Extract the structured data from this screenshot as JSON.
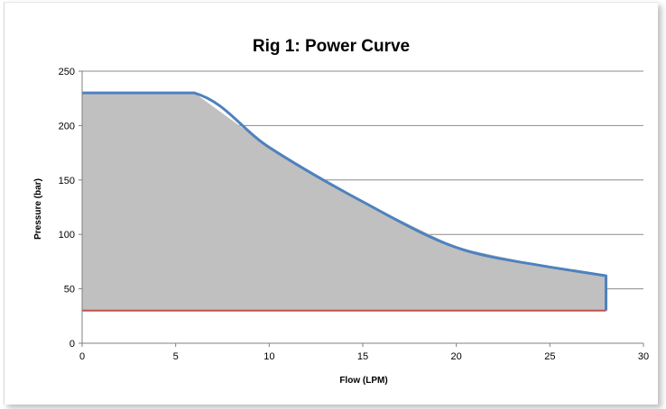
{
  "chart_data": {
    "type": "area",
    "title": "Rig 1: Power Curve",
    "xlabel": "Flow (LPM)",
    "ylabel": "Pressure (bar)",
    "xlim": [
      0,
      30
    ],
    "ylim": [
      0,
      250
    ],
    "x_ticks": [
      "0",
      "5",
      "10",
      "15",
      "20",
      "25",
      "30"
    ],
    "y_ticks": [
      "0",
      "50",
      "100",
      "150",
      "200",
      "250"
    ],
    "x_tick_values": [
      0,
      5,
      10,
      15,
      20,
      25,
      30
    ],
    "y_tick_values": [
      0,
      50,
      100,
      150,
      200,
      250
    ],
    "grid": "horizontal",
    "legend": "none",
    "series": [
      {
        "color": "#4f81bd",
        "fill": "#c0c0c0",
        "x": [
          0,
          6,
          10,
          15,
          20,
          25,
          28,
          28
        ],
        "y": [
          230,
          230,
          180,
          130,
          88,
          70,
          62,
          30
        ]
      },
      {
        "color": "#c0504d",
        "x": [
          0,
          28
        ],
        "y": [
          30,
          30
        ]
      }
    ]
  }
}
